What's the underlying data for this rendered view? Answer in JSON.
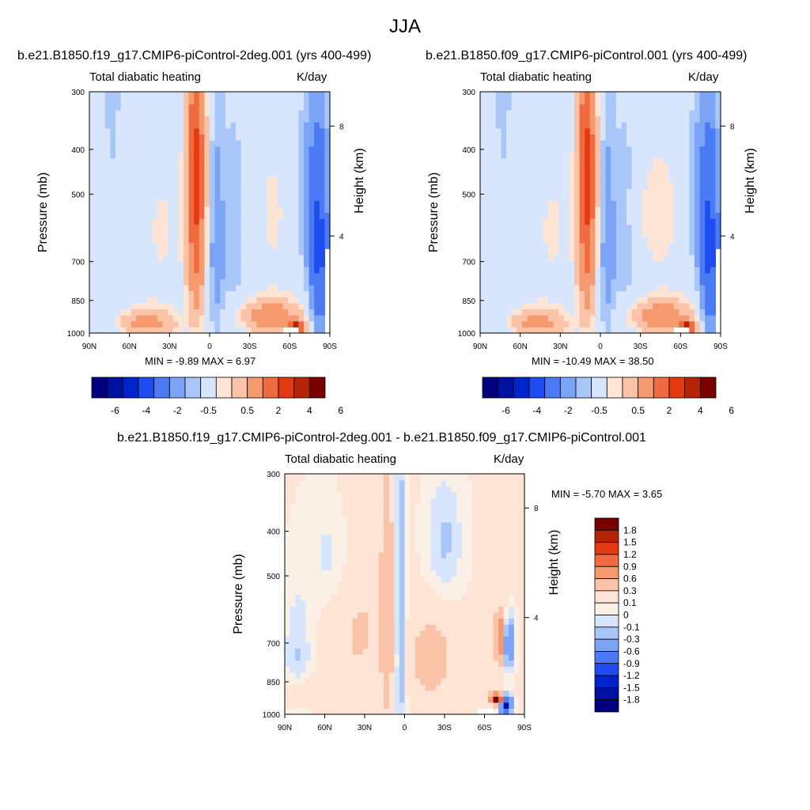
{
  "page": {
    "title": "JJA"
  },
  "palette": {
    "levels_abs": [
      "-6",
      "-4",
      "-2",
      "-0.5",
      "0.5",
      "2",
      "4",
      "6"
    ],
    "levels_diff": [
      "1.8",
      "1.5",
      "1.2",
      "0.9",
      "0.6",
      "0.3",
      "0.1",
      "0",
      "-0.1",
      "-0.3",
      "-0.6",
      "-0.9",
      "-1.2",
      "-1.5",
      "-1.8"
    ],
    "colors_abs": [
      "#00007e",
      "#0010a0",
      "#0024cc",
      "#1f4cf0",
      "#4a7bf4",
      "#7ba4f6",
      "#a9c6f9",
      "#d7e6fc",
      "#fde4d4",
      "#fac3a8",
      "#f5996f",
      "#f06b3f",
      "#e43a14",
      "#b52406",
      "#7a0000"
    ],
    "colors_diff": [
      "#7a0000",
      "#b52406",
      "#e43a14",
      "#f06b3f",
      "#f5996f",
      "#fac3a8",
      "#fde4d4",
      "#fbf0e6",
      "#d7e6fc",
      "#a9c6f9",
      "#7ba4f6",
      "#4a7bf4",
      "#1f4cf0",
      "#0024cc",
      "#0010a0",
      "#00007e"
    ]
  },
  "panels": [
    {
      "case_title": "b.e21.B1850.f19_g17.CMIP6-piControl-2deg.001 (yrs 400-499)",
      "left_label": "Total diabatic heating",
      "right_label": "K/day",
      "minmax": "MIN =  -9.89  MAX =   6.97",
      "y_label": "Pressure (mb)",
      "y2_label": "Height (km)",
      "pressure_ticks": [
        "300",
        "400",
        "500",
        "700",
        "850",
        "1000"
      ],
      "height_ticks": [
        "8",
        "4"
      ],
      "lat_ticks": [
        "90N",
        "60N",
        "30N",
        "0",
        "30S",
        "60S",
        "90S"
      ],
      "colorbar_labels": [
        "-6",
        "-4",
        "-2",
        "-0.5",
        "0.5",
        "2",
        "4",
        "6"
      ]
    },
    {
      "case_title": "b.e21.B1850.f09_g17.CMIP6-piControl.001 (yrs 400-499)",
      "left_label": "Total diabatic heating",
      "right_label": "K/day",
      "minmax": "MIN = -10.49  MAX =  38.50",
      "y_label": "Pressure (mb)",
      "y2_label": "Height (km)",
      "pressure_ticks": [
        "300",
        "400",
        "500",
        "700",
        "850",
        "1000"
      ],
      "height_ticks": [
        "8",
        "4"
      ],
      "lat_ticks": [
        "90N",
        "60N",
        "30N",
        "0",
        "30S",
        "60S",
        "90S"
      ],
      "colorbar_labels": [
        "-6",
        "-4",
        "-2",
        "-0.5",
        "0.5",
        "2",
        "4",
        "6"
      ]
    },
    {
      "case_title": "b.e21.B1850.f19_g17.CMIP6-piControl-2deg.001 - b.e21.B1850.f09_g17.CMIP6-piControl.001",
      "left_label": "Total diabatic heating",
      "right_label": "K/day",
      "minmax": "MIN =  -5.70  MAX =   3.65",
      "y_label": "Pressure (mb)",
      "y2_label": "Height (km)",
      "pressure_ticks": [
        "300",
        "400",
        "500",
        "700",
        "850",
        "1000"
      ],
      "height_ticks": [
        "8",
        "4"
      ],
      "lat_ticks": [
        "90N",
        "60N",
        "30N",
        "0",
        "30S",
        "60S",
        "90S"
      ],
      "colorbar_labels": [
        "1.8",
        "1.5",
        "1.2",
        "0.9",
        "0.6",
        "0.3",
        "0.1",
        "0",
        "-0.1",
        "-0.3",
        "-0.6",
        "-0.9",
        "-1.2",
        "-1.5",
        "-1.8"
      ]
    }
  ],
  "chart_data": [
    {
      "type": "heatmap",
      "title": "b.e21.B1850.f19_g17.CMIP6-piControl-2deg.001 (yrs 400-499)",
      "field": "Total diabatic heating",
      "units": "K/day",
      "xlabel": "",
      "ylabel": "Pressure (mb)",
      "y2label": "Height (km)",
      "x_ticks": [
        "90N",
        "60N",
        "30N",
        "0",
        "30S",
        "60S",
        "90S"
      ],
      "xlim": [
        90,
        -90
      ],
      "ylim": [
        1000,
        300
      ],
      "pressure_ticks": [
        300,
        400,
        500,
        700,
        850,
        1000
      ],
      "height_ticks_km": [
        8,
        4
      ],
      "contour_levels": [
        -6,
        -4,
        -2,
        -0.5,
        0.5,
        2,
        4,
        6
      ],
      "min": -9.89,
      "max": 6.97,
      "features": [
        {
          "lat": 10,
          "p_top": 300,
          "p_bot": 1000,
          "value": 4,
          "desc": "deep tropical heating column"
        },
        {
          "lat": 60,
          "p_top": 850,
          "p_bot": 1000,
          "value": 2
        },
        {
          "lat": -70,
          "p_top": 920,
          "p_bot": 1000,
          "value": 6
        },
        {
          "lat": -15,
          "p_top": 300,
          "p_bot": 900,
          "value": -2
        },
        {
          "lat": -80,
          "p_top": 550,
          "p_bot": 950,
          "value": -6
        }
      ]
    },
    {
      "type": "heatmap",
      "title": "b.e21.B1850.f09_g17.CMIP6-piControl.001 (yrs 400-499)",
      "field": "Total diabatic heating",
      "units": "K/day",
      "xlabel": "",
      "ylabel": "Pressure (mb)",
      "y2label": "Height (km)",
      "x_ticks": [
        "90N",
        "60N",
        "30N",
        "0",
        "30S",
        "60S",
        "90S"
      ],
      "xlim": [
        90,
        -90
      ],
      "ylim": [
        1000,
        300
      ],
      "pressure_ticks": [
        300,
        400,
        500,
        700,
        850,
        1000
      ],
      "height_ticks_km": [
        8,
        4
      ],
      "contour_levels": [
        -6,
        -4,
        -2,
        -0.5,
        0.5,
        2,
        4,
        6
      ],
      "min": -10.49,
      "max": 38.5,
      "features": [
        {
          "lat": 10,
          "p_top": 300,
          "p_bot": 1000,
          "value": 4,
          "desc": "deep tropical heating column"
        },
        {
          "lat": 60,
          "p_top": 850,
          "p_bot": 1000,
          "value": 2
        },
        {
          "lat": -70,
          "p_top": 920,
          "p_bot": 1000,
          "value": 6
        },
        {
          "lat": -15,
          "p_top": 300,
          "p_bot": 900,
          "value": -2
        },
        {
          "lat": -80,
          "p_top": 550,
          "p_bot": 950,
          "value": -6
        }
      ]
    },
    {
      "type": "heatmap",
      "title": "b.e21.B1850.f19_g17.CMIP6-piControl-2deg.001 - b.e21.B1850.f09_g17.CMIP6-piControl.001",
      "field": "Total diabatic heating",
      "units": "K/day",
      "xlabel": "",
      "ylabel": "Pressure (mb)",
      "y2label": "Height (km)",
      "x_ticks": [
        "90N",
        "60N",
        "30N",
        "0",
        "30S",
        "60S",
        "90S"
      ],
      "xlim": [
        90,
        -90
      ],
      "ylim": [
        1000,
        300
      ],
      "pressure_ticks": [
        300,
        400,
        500,
        700,
        850,
        1000
      ],
      "height_ticks_km": [
        8,
        4
      ],
      "contour_levels": [
        -1.8,
        -1.5,
        -1.2,
        -0.9,
        -0.6,
        -0.3,
        -0.1,
        0,
        0.1,
        0.3,
        0.6,
        0.9,
        1.2,
        1.5,
        1.8
      ],
      "min": -5.7,
      "max": 3.65,
      "features": [
        {
          "lat": 5,
          "p_top": 300,
          "p_bot": 1000,
          "value": -0.3,
          "desc": "negative column near equator"
        },
        {
          "lat": 15,
          "p_top": 350,
          "p_bot": 950,
          "value": 0.3
        },
        {
          "lat": -20,
          "p_top": 600,
          "p_bot": 900,
          "value": 0.6
        },
        {
          "lat": -70,
          "p_top": 900,
          "p_bot": 960,
          "value": 1.8
        },
        {
          "lat": -75,
          "p_top": 900,
          "p_bot": 980,
          "value": -1.8
        }
      ]
    }
  ]
}
